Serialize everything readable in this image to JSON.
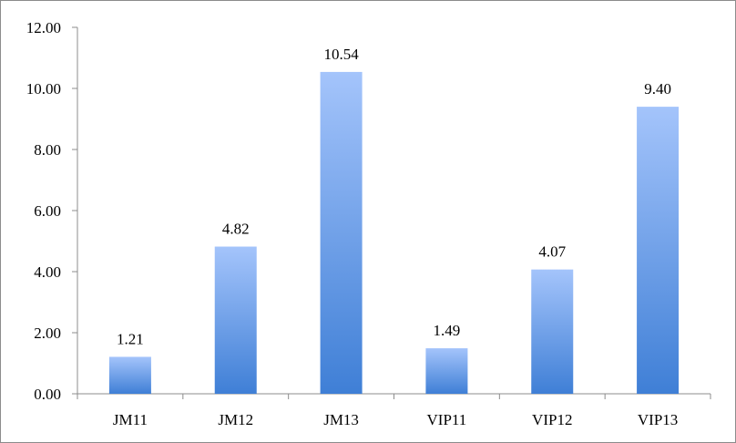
{
  "chart_data": {
    "type": "bar",
    "title": "",
    "xlabel": "",
    "ylabel": "",
    "categories": [
      "JM11",
      "JM12",
      "JM13",
      "VIP11",
      "VIP12",
      "VIP13"
    ],
    "values": [
      1.21,
      4.82,
      10.54,
      1.49,
      4.07,
      9.4
    ],
    "value_labels": [
      "1.21",
      "4.82",
      "10.54",
      "1.49",
      "4.07",
      "9.40"
    ],
    "ylim": [
      0,
      12
    ],
    "yticks": [
      0,
      2,
      4,
      6,
      8,
      10,
      12
    ],
    "ytick_labels": [
      "0.00",
      "2.00",
      "4.00",
      "6.00",
      "8.00",
      "10.00",
      "12.00"
    ],
    "grid": false,
    "legend": "none",
    "colors": {
      "bar_top": "#a4c4fb",
      "bar_bottom": "#3f7fd6",
      "axis": "#8c8c8c"
    }
  }
}
